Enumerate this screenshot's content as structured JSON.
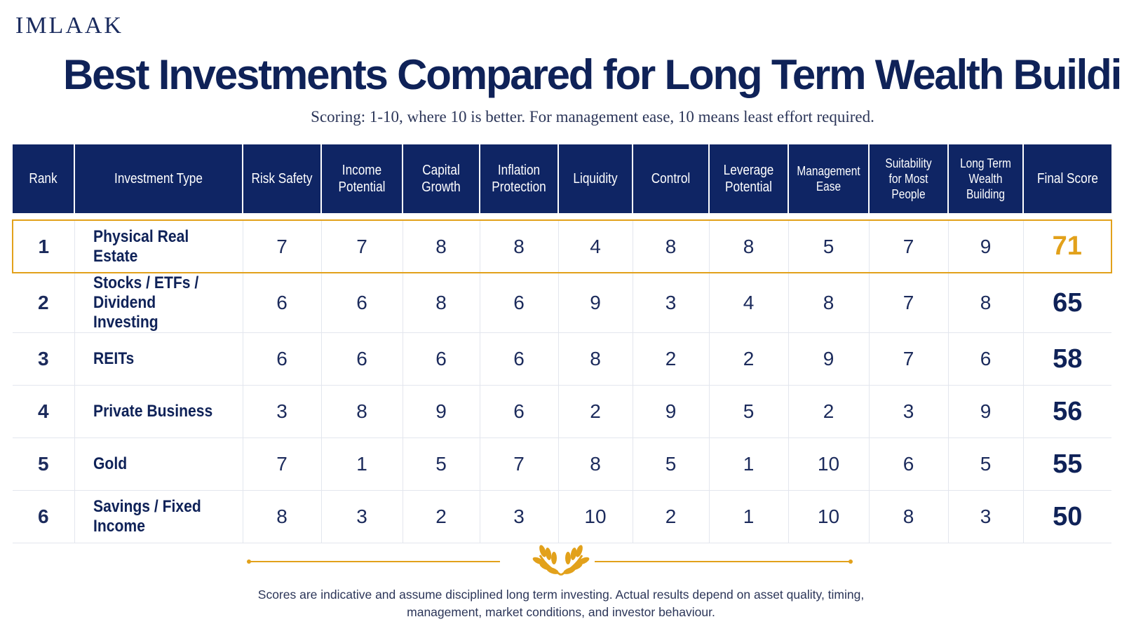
{
  "brand": "IMLAAK",
  "title": "Best Investments Compared for Long Term Wealth Building",
  "subtitle": "Scoring: 1-10, where 10 is better. For management ease, 10 means least effort required.",
  "columns": [
    "Rank",
    "Investment Type",
    "Risk Safety",
    "Income Potential",
    "Capital Growth",
    "Inflation Protection",
    "Liquidity",
    "Control",
    "Leverage Potential",
    "Management Ease",
    "Suitability for Most People",
    "Long Term Wealth Building",
    "Final Score"
  ],
  "rows": [
    {
      "rank": "1",
      "type": "Physical Real Estate",
      "scores": [
        "7",
        "7",
        "8",
        "8",
        "4",
        "8",
        "8",
        "5",
        "7",
        "9"
      ],
      "final": "71"
    },
    {
      "rank": "2",
      "type": "Stocks / ETFs / Dividend Investing",
      "scores": [
        "6",
        "6",
        "8",
        "6",
        "9",
        "3",
        "4",
        "8",
        "7",
        "8"
      ],
      "final": "65"
    },
    {
      "rank": "3",
      "type": "REITs",
      "scores": [
        "6",
        "6",
        "6",
        "6",
        "8",
        "2",
        "2",
        "9",
        "7",
        "6"
      ],
      "final": "58"
    },
    {
      "rank": "4",
      "type": "Private Business",
      "scores": [
        "3",
        "8",
        "9",
        "6",
        "2",
        "9",
        "5",
        "2",
        "3",
        "9"
      ],
      "final": "56"
    },
    {
      "rank": "5",
      "type": "Gold",
      "scores": [
        "7",
        "1",
        "5",
        "7",
        "8",
        "5",
        "1",
        "10",
        "6",
        "5"
      ],
      "final": "55"
    },
    {
      "rank": "6",
      "type": "Savings / Fixed Income",
      "scores": [
        "8",
        "3",
        "2",
        "3",
        "10",
        "2",
        "1",
        "10",
        "8",
        "3"
      ],
      "final": "50"
    }
  ],
  "footnote": "Scores are indicative and assume disciplined long term investing. Actual results depend on asset quality, timing, management, market conditions, and investor behaviour.",
  "colors": {
    "navy": "#0f2564",
    "gold": "#e2a11b"
  },
  "icons": {
    "ornament": "laurel-icon"
  }
}
